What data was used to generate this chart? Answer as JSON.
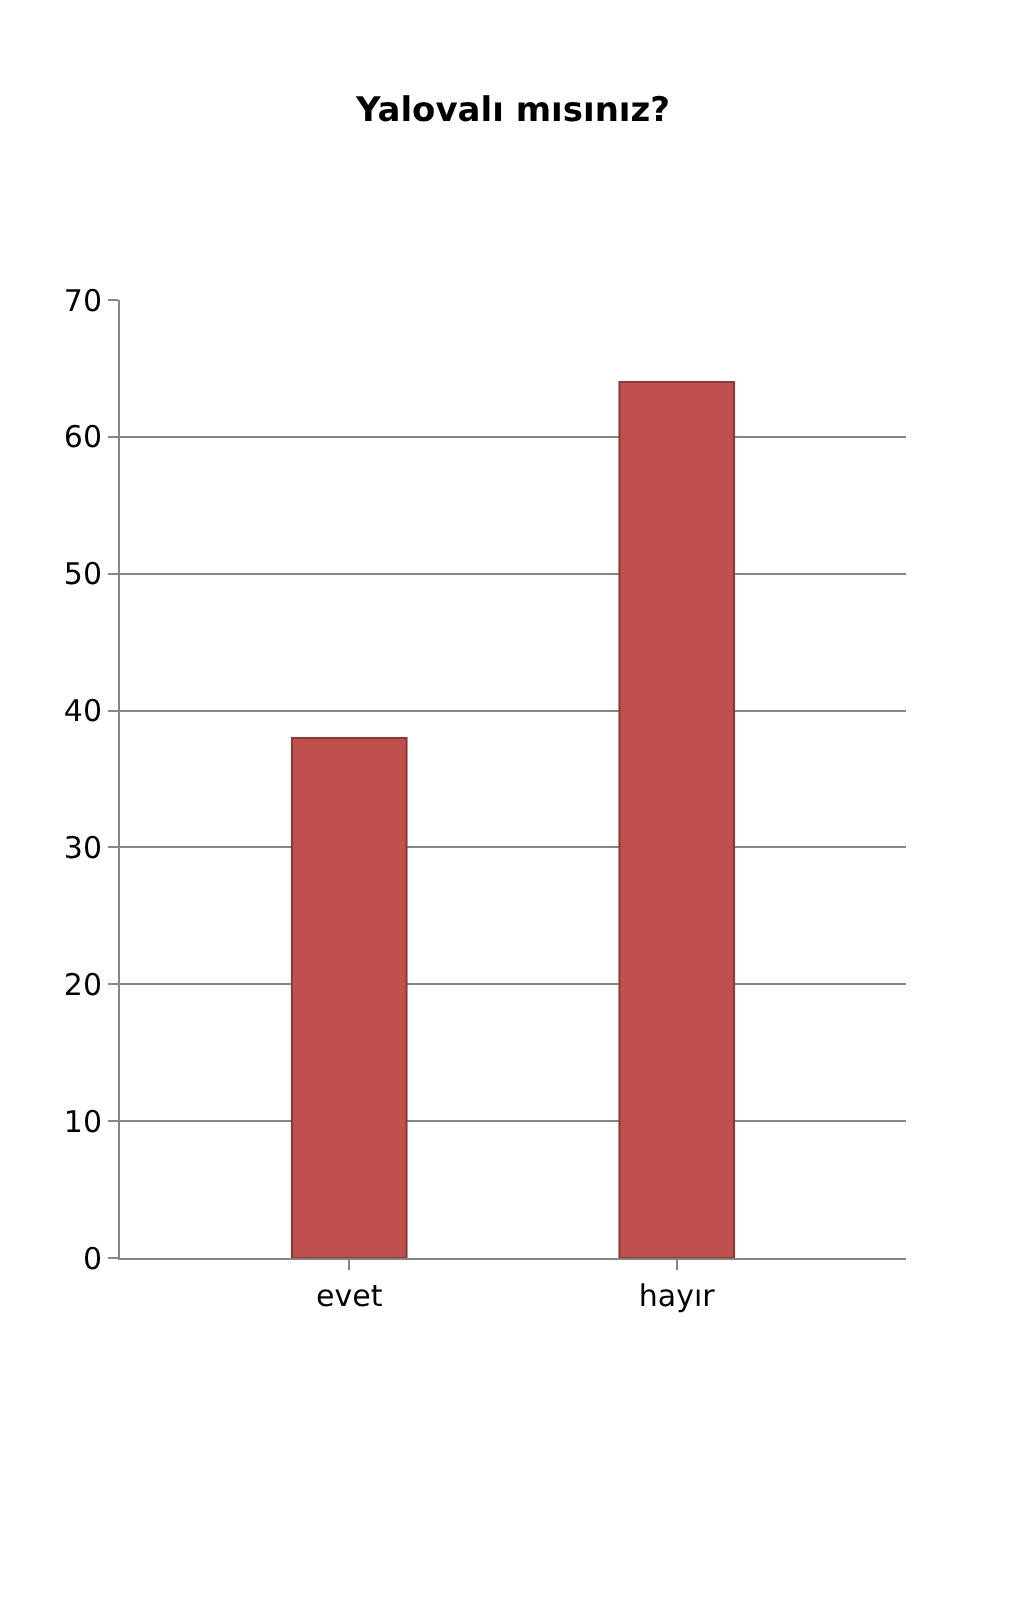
{
  "chart_data": {
    "type": "bar",
    "title": "Yalovalı mısınız?",
    "categories": [
      "evet",
      "hayır"
    ],
    "values": [
      38,
      64
    ],
    "color": "#c0504d",
    "ylim": [
      0,
      70
    ],
    "yticks": [
      0,
      10,
      20,
      30,
      40,
      50,
      60,
      70
    ],
    "grid": "y"
  }
}
